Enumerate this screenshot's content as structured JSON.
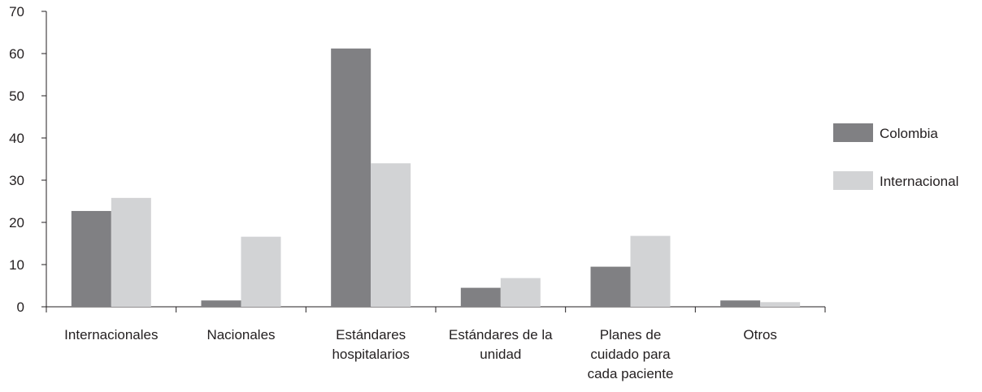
{
  "chart_data": {
    "type": "bar",
    "categories": [
      [
        "Internacionales"
      ],
      [
        "Nacionales"
      ],
      [
        "Estándares",
        "hospitalarios"
      ],
      [
        "Estándares de la",
        "unidad"
      ],
      [
        "Planes de",
        "cuidado para",
        "cada paciente"
      ],
      [
        "Otros"
      ]
    ],
    "series": [
      {
        "name": "Colombia",
        "color": "#808083",
        "values": [
          22.7,
          1.5,
          61.2,
          4.5,
          9.5,
          1.5
        ]
      },
      {
        "name": "Internacional",
        "color": "#d2d3d5",
        "values": [
          25.8,
          16.6,
          34.0,
          6.8,
          16.8,
          1.1
        ]
      }
    ],
    "ylim": [
      0,
      70
    ],
    "yticks": [
      0,
      10,
      20,
      30,
      40,
      50,
      60,
      70
    ],
    "legend_position": "right",
    "grid": false,
    "title": "",
    "xlabel": "",
    "ylabel": ""
  }
}
